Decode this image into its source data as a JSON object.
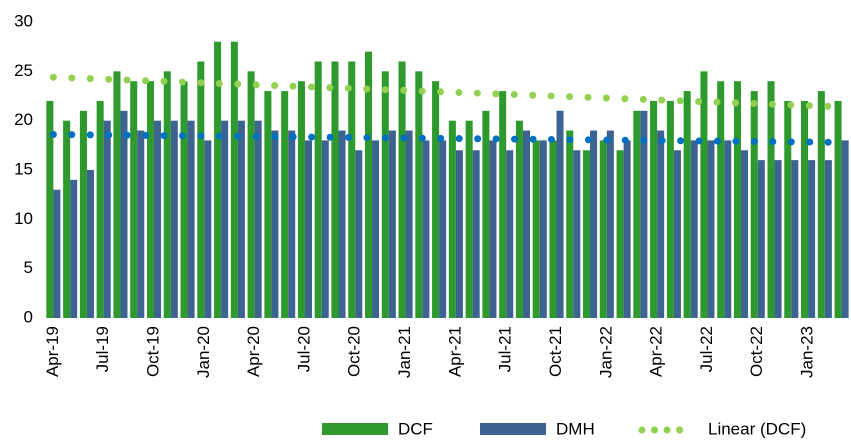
{
  "chart_data": {
    "type": "bar",
    "categories": [
      "Apr-19",
      null,
      null,
      "Jul-19",
      null,
      null,
      "Oct-19",
      null,
      null,
      "Jan-20",
      null,
      null,
      "Apr-20",
      null,
      null,
      "Jul-20",
      null,
      null,
      "Oct-20",
      null,
      null,
      "Jan-21",
      null,
      null,
      "Apr-21",
      null,
      null,
      "Jul-21",
      null,
      null,
      "Oct-21",
      null,
      null,
      "Jan-22",
      null,
      null,
      "Apr-22",
      null,
      null,
      "Jul-22",
      null,
      null,
      "Oct-22",
      null,
      null,
      "Jan-23",
      null,
      null
    ],
    "series": [
      {
        "name": "DCF",
        "color": "#2e9a2e",
        "values": [
          22,
          20,
          21,
          22,
          25,
          24,
          24,
          25,
          24,
          26,
          28,
          28,
          25,
          23,
          23,
          24,
          26,
          26,
          26,
          27,
          25,
          26,
          25,
          24,
          20,
          20,
          21,
          23,
          20,
          18,
          18,
          19,
          17,
          18,
          17,
          21,
          22,
          22,
          23,
          25,
          24,
          24,
          23,
          24,
          22,
          22,
          23,
          22
        ]
      },
      {
        "name": "DMH",
        "color": "#3d6491",
        "values": [
          13,
          14,
          15,
          20,
          21,
          19,
          20,
          20,
          20,
          18,
          20,
          20,
          20,
          19,
          19,
          18,
          18,
          19,
          17,
          18,
          19,
          19,
          18,
          18,
          17,
          17,
          18,
          17,
          19,
          18,
          21,
          17,
          19,
          19,
          18,
          21,
          19,
          17,
          18,
          18,
          18,
          17,
          16,
          16,
          16,
          16,
          16,
          18
        ]
      }
    ],
    "trend_lines": [
      {
        "name": "Linear (DCF)",
        "color": "#92d050",
        "values": [
          24.4,
          21.4
        ]
      },
      {
        "color": "#0070c0",
        "values": [
          18.6,
          17.8
        ]
      }
    ],
    "ylim": [
      0,
      30
    ],
    "yticks": [
      0,
      5,
      10,
      15,
      20,
      25,
      30
    ],
    "grid": false
  }
}
